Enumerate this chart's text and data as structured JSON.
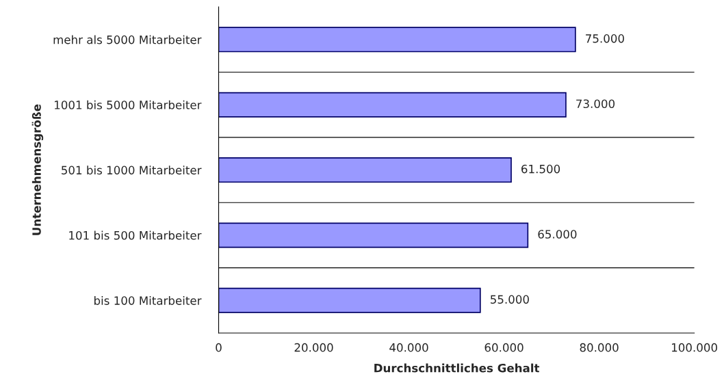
{
  "chart_data": {
    "type": "bar",
    "orientation": "horizontal",
    "xlabel": "Durchschnittliches Gehalt",
    "ylabel": "Unternehmensgröße",
    "categories": [
      "mehr als 5000 Mitarbeiter",
      "1001 bis 5000 Mitarbeiter",
      "501 bis 1000 Mitarbeiter",
      "101 bis 500 Mitarbeiter",
      "bis 100 Mitarbeiter"
    ],
    "values": [
      75000,
      73000,
      61500,
      65000,
      55000
    ],
    "value_labels": [
      "75.000",
      "73.000",
      "61.500",
      "65.000",
      "55.000"
    ],
    "color": "#9999ff",
    "xlim": [
      0,
      100000
    ],
    "xticks": [
      0,
      {
        "value": 20000,
        "label": "20.000"
      },
      {
        "value": 40000,
        "label": "40.000"
      },
      {
        "value": 60000,
        "label": "60.000"
      },
      {
        "value": 80000,
        "label": "80.000"
      },
      {
        "value": 100000,
        "label": "100.000"
      }
    ],
    "grid": "y",
    "legend": false
  }
}
